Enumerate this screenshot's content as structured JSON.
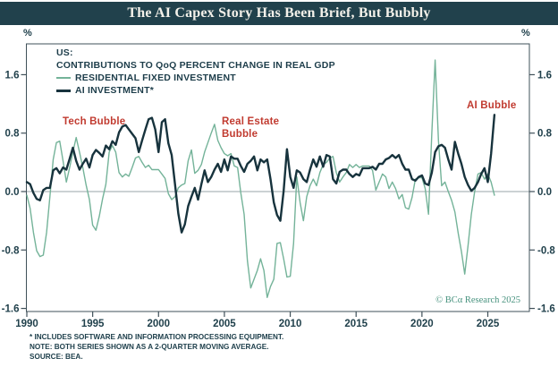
{
  "title": "The AI Capex Story Has Been Brief, But Bubbly",
  "axis": {
    "percent_left": "%",
    "percent_right": "%"
  },
  "legend": {
    "region_label": "US:",
    "subtitle": "CONTRIBUTIONS TO QoQ PERCENT CHANGE IN REAL GDP",
    "series": [
      {
        "label": "RESIDENTIAL FIXED INVESTMENT",
        "color": "#74b399"
      },
      {
        "label": "AI INVESTMENT*",
        "color": "#17333d"
      }
    ]
  },
  "annotations": [
    {
      "id": "tech-bubble",
      "text": "Tech Bubble",
      "color": "#c13b30"
    },
    {
      "id": "real-estate-bubble",
      "text": "Real Estate\nBubble",
      "color": "#c13b30"
    },
    {
      "id": "ai-bubble",
      "text": "AI Bubble",
      "color": "#c13b30"
    }
  ],
  "copyright": "© BCα Research 2025",
  "footnotes": [
    "*  INCLUDES SOFTWARE AND INFORMATION PROCESSING EQUIPMENT.",
    "NOTE: BOTH SERIES SHOWN AS A 2-QUARTER MOVING AVERAGE.",
    "SOURCE: BEA."
  ],
  "chart_data": {
    "type": "line",
    "title": "The AI Capex Story Has Been Brief, But Bubbly",
    "x_start": 1990,
    "x_step": 0.25,
    "x_tick_years": [
      1990,
      1995,
      2000,
      2005,
      2010,
      2015,
      2020,
      2025
    ],
    "y_ticks": [
      1.6,
      0.8,
      0.0,
      -0.8,
      -1.6
    ],
    "ylim": [
      -1.65,
      2.0
    ],
    "ylabel": "%",
    "grid": false,
    "series": [
      {
        "name": "RESIDENTIAL FIXED INVESTMENT",
        "color": "#74b399",
        "width": 1.4,
        "values": [
          -0.05,
          -0.23,
          -0.56,
          -0.81,
          -0.89,
          -0.87,
          -0.56,
          -0.07,
          0.44,
          0.67,
          0.69,
          0.42,
          0.13,
          0.33,
          0.54,
          0.74,
          0.54,
          0.33,
          0.09,
          -0.11,
          -0.46,
          -0.53,
          -0.34,
          -0.1,
          0.1,
          0.54,
          0.63,
          0.54,
          0.26,
          0.2,
          0.24,
          0.21,
          0.33,
          0.46,
          0.48,
          0.4,
          0.33,
          0.36,
          0.3,
          0.3,
          0.3,
          0.24,
          0.18,
          -0.03,
          -0.11,
          -0.07,
          0.05,
          0.09,
          0.11,
          0.42,
          0.57,
          0.25,
          0.29,
          0.37,
          0.54,
          0.67,
          0.8,
          0.92,
          0.7,
          0.6,
          0.52,
          0.49,
          0.52,
          0.35,
          0.33,
          -0.02,
          -0.31,
          -0.95,
          -1.32,
          -1.2,
          -1.08,
          -0.92,
          -1.08,
          -1.45,
          -1.3,
          -1.2,
          -0.71,
          -0.7,
          -0.92,
          -1.17,
          -1.16,
          -0.71,
          0.2,
          -0.15,
          -0.4,
          -0.07,
          0.08,
          0.17,
          0.08,
          0.26,
          0.37,
          0.4,
          0.46,
          0.48,
          0.26,
          0.13,
          0.2,
          0.26,
          0.37,
          0.33,
          0.37,
          0.33,
          0.35,
          0.35,
          0.35,
          0.29,
          0.02,
          0.13,
          0.24,
          0.2,
          0.04,
          0.13,
          0.04,
          -0.1,
          -0.04,
          -0.22,
          -0.24,
          -0.08,
          0.17,
          0.19,
          0.19,
          0.04,
          -0.31,
          0.8,
          1.8,
          0.7,
          0.08,
          0.13,
          0.0,
          -0.12,
          -0.28,
          -0.57,
          -0.82,
          -1.13,
          -0.74,
          -0.31,
          0.0,
          0.24,
          0.26,
          0.17,
          0.24,
          0.13,
          -0.05
        ]
      },
      {
        "name": "AI INVESTMENT*",
        "color": "#17333d",
        "width": 2.4,
        "values": [
          0.13,
          0.1,
          -0.02,
          -0.1,
          -0.12,
          0.02,
          0.05,
          0.05,
          0.29,
          0.32,
          0.25,
          0.33,
          0.3,
          0.45,
          0.6,
          0.42,
          0.3,
          0.38,
          0.45,
          0.33,
          0.5,
          0.57,
          0.53,
          0.48,
          0.63,
          0.58,
          0.69,
          0.64,
          0.81,
          0.89,
          0.91,
          0.85,
          0.79,
          0.73,
          0.54,
          0.7,
          0.85,
          0.99,
          1.01,
          0.85,
          0.54,
          0.95,
          0.99,
          0.66,
          0.5,
          0.1,
          -0.3,
          -0.56,
          -0.45,
          -0.2,
          -0.07,
          0.05,
          -0.11,
          0.1,
          0.29,
          0.13,
          0.2,
          0.3,
          0.38,
          0.27,
          0.44,
          0.29,
          0.48,
          0.45,
          0.45,
          0.35,
          0.27,
          0.38,
          0.42,
          0.48,
          0.29,
          0.44,
          0.4,
          0.44,
          0.17,
          -0.15,
          -0.32,
          -0.4,
          0.01,
          0.58,
          0.2,
          0.05,
          0.29,
          0.26,
          0.17,
          0.13,
          0.3,
          0.44,
          0.34,
          0.48,
          0.34,
          0.5,
          0.48,
          0.17,
          0.11,
          0.27,
          0.3,
          0.3,
          0.24,
          0.2,
          0.24,
          0.22,
          0.32,
          0.32,
          0.32,
          0.34,
          0.3,
          0.38,
          0.38,
          0.44,
          0.46,
          0.5,
          0.46,
          0.5,
          0.38,
          0.3,
          0.3,
          0.17,
          0.15,
          0.2,
          0.22,
          0.11,
          0.09,
          0.26,
          0.54,
          0.62,
          0.64,
          0.6,
          0.44,
          0.3,
          0.68,
          0.52,
          0.38,
          0.2,
          0.09,
          0.01,
          0.05,
          0.13,
          0.24,
          0.32,
          0.13,
          0.52,
          1.05
        ]
      }
    ]
  }
}
